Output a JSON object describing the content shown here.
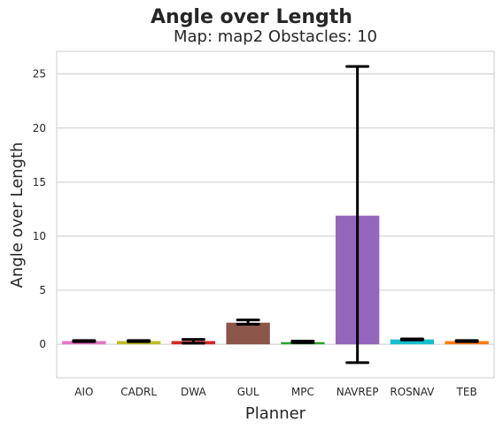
{
  "chart_data": {
    "type": "bar",
    "suptitle": "Angle over Length",
    "title": "Map: map2 Obstacles: 10",
    "xlabel": "Planner",
    "ylabel": "Angle over Length",
    "categories": [
      "AIO",
      "CADRL",
      "DWA",
      "GUL",
      "MPC",
      "NAVREP",
      "ROSNAV",
      "TEB"
    ],
    "values": [
      0.3,
      0.3,
      0.3,
      2.0,
      0.2,
      11.9,
      0.45,
      0.3
    ],
    "error_low": [
      0.25,
      0.25,
      0.1,
      1.85,
      0.15,
      -1.7,
      0.4,
      0.25
    ],
    "error_high": [
      0.35,
      0.35,
      0.45,
      2.25,
      0.3,
      25.7,
      0.5,
      0.35
    ],
    "colors": [
      "#e377c2",
      "#bcbd22",
      "#d62728",
      "#8c564b",
      "#2ca02c",
      "#9467bd",
      "#17becf",
      "#ff7f0e"
    ],
    "ylim": [
      -3.1,
      27.1
    ],
    "yticks": [
      0,
      5,
      10,
      15,
      20,
      25
    ],
    "grid": "y"
  }
}
